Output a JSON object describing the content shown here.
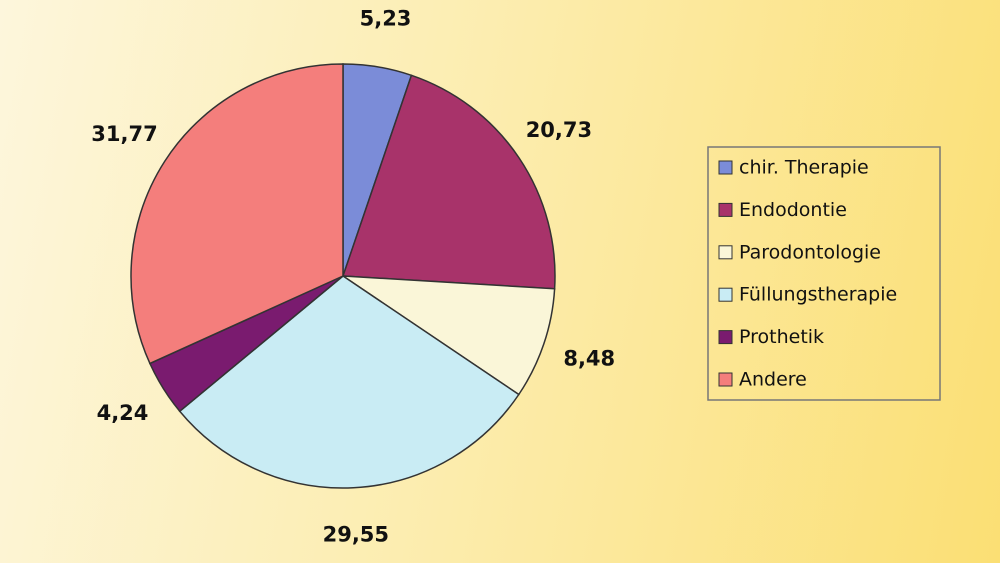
{
  "chart_data": {
    "type": "pie",
    "categories": [
      "chir. Therapie",
      "Endodontie",
      "Parodontologie",
      "Füllungstherapie",
      "Prothetik",
      "Andere"
    ],
    "values": [
      5.23,
      20.73,
      8.48,
      29.55,
      4.24,
      31.77
    ],
    "value_labels": [
      "5,23",
      "20,73",
      "8,48",
      "29,55",
      "4,24",
      "31,77"
    ],
    "colors": [
      "#7b8cd8",
      "#a8336a",
      "#faf6d8",
      "#c9ecf4",
      "#7a1b6f",
      "#f47e7c"
    ],
    "legend": "right"
  }
}
